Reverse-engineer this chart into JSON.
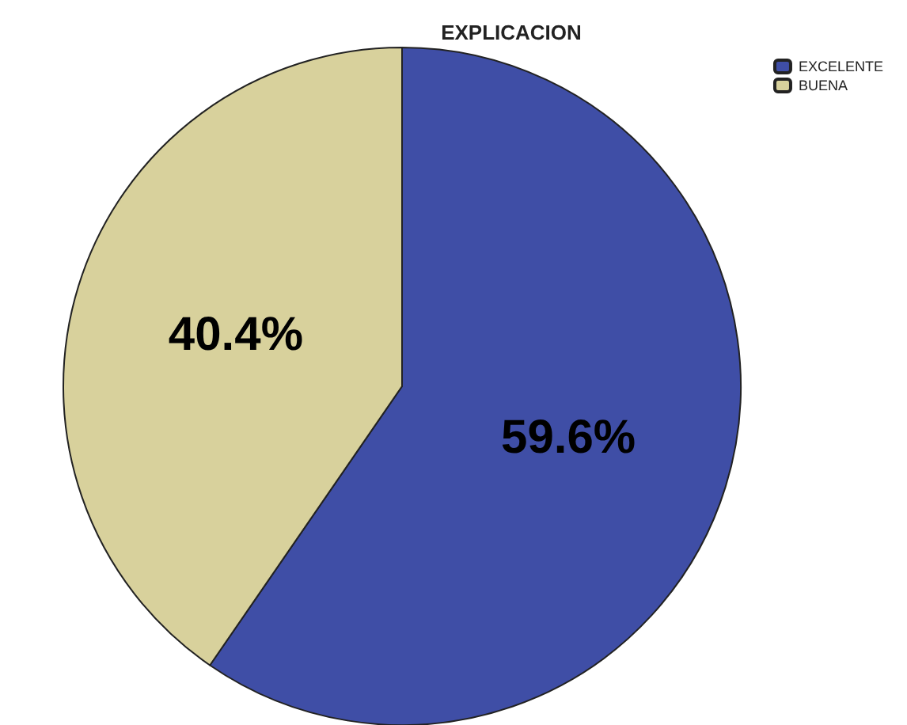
{
  "chart_data": {
    "type": "pie",
    "title": "EXPLICACION",
    "categories": [
      "EXCELENTE",
      "BUENA"
    ],
    "values": [
      59.6,
      40.4
    ],
    "colors": [
      "#3f4ea6",
      "#d8d19c"
    ],
    "value_labels": [
      "59.6%",
      "40.4%"
    ],
    "legend": "top right"
  }
}
